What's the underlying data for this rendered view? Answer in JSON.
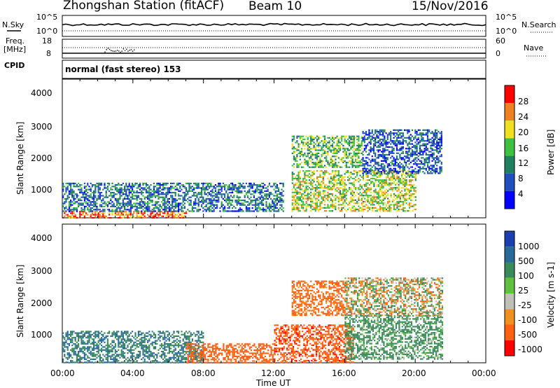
{
  "header": {
    "title": "Zhongshan Station (fitACF)",
    "beam": "Beam 10",
    "date": "15/Nov/2016"
  },
  "top_panel": {
    "left_label": "N.Sky",
    "right_label": "N.Search",
    "left_ticks": [
      "10^5",
      "10^0"
    ],
    "right_ticks": [
      "10^5",
      "10^0"
    ]
  },
  "freq_panel": {
    "left_label_line1": "Freq.",
    "left_label_line2": "[MHz]",
    "left_ticks": [
      "18",
      "8"
    ],
    "right_label": "Nave",
    "right_ticks": [
      "60",
      "0"
    ]
  },
  "cpid": {
    "label": "CPID",
    "text": "normal (fast stereo) 153"
  },
  "power_panel": {
    "ylabel": "Slant Range [km]",
    "yticks": [
      "4000",
      "3000",
      "2000",
      "1000"
    ],
    "colorbar_label": "Power [dB]",
    "colorbar_ticks": [
      "28",
      "24",
      "20",
      "16",
      "12",
      "8",
      "4"
    ]
  },
  "velocity_panel": {
    "ylabel": "Slant Range [km]",
    "yticks": [
      "4000",
      "3000",
      "2000",
      "1000"
    ],
    "colorbar_label": "Velocity [m s-1]",
    "colorbar_ticks": [
      "1000",
      "500",
      "100",
      "25",
      "-25",
      "-100",
      "-500",
      "-1000"
    ]
  },
  "xaxis": {
    "label": "Time UT",
    "ticks": [
      "00:00",
      "04:00",
      "08:00",
      "12:00",
      "16:00",
      "20:00",
      "00:00"
    ]
  },
  "colors": {
    "power_scale": [
      "#0000ff",
      "#2050c0",
      "#208060",
      "#40c040",
      "#f0e020",
      "#f08020",
      "#ff0000"
    ],
    "velocity_scale": [
      "#1a3fb0",
      "#2a6a9a",
      "#3a8a5a",
      "#60c040",
      "#c0c0b8",
      "#f09020",
      "#ff6010",
      "#ff0000"
    ]
  },
  "chart_data": [
    {
      "type": "heatmap",
      "title": "Zhongshan Station (fitACF)",
      "xlabel": "Time UT",
      "ylabel": "Slant Range [km]",
      "xlim": [
        "00:00",
        "00:00"
      ],
      "ylim": [
        180,
        4600
      ],
      "colorbar": "Power [dB]",
      "zlim": [
        0,
        30
      ],
      "regions": [
        {
          "time": [
            "00:00",
            "07:00"
          ],
          "range_km": [
            200,
            400
          ],
          "power_db": 26
        },
        {
          "time": [
            "00:00",
            "12:30"
          ],
          "range_km": [
            400,
            1300
          ],
          "power_db": 8
        },
        {
          "time": [
            "13:00",
            "20:00"
          ],
          "range_km": [
            400,
            1700
          ],
          "power_db": 18
        },
        {
          "time": [
            "13:00",
            "17:00"
          ],
          "range_km": [
            1800,
            2800
          ],
          "power_db": 14
        },
        {
          "time": [
            "17:00",
            "21:30"
          ],
          "range_km": [
            1600,
            3000
          ],
          "power_db": 6
        }
      ]
    },
    {
      "type": "heatmap",
      "xlabel": "Time UT",
      "ylabel": "Slant Range [km]",
      "xlim": [
        "00:00",
        "00:00"
      ],
      "ylim": [
        180,
        4600
      ],
      "colorbar": "Velocity [m s-1]",
      "zlim": [
        -1000,
        1000
      ],
      "regions": [
        {
          "time": [
            "00:00",
            "08:00"
          ],
          "range_km": [
            200,
            1200
          ],
          "velocity": 300
        },
        {
          "time": [
            "07:00",
            "12:00"
          ],
          "range_km": [
            200,
            800
          ],
          "velocity": -300
        },
        {
          "time": [
            "12:00",
            "16:30"
          ],
          "range_km": [
            200,
            1400
          ],
          "velocity": -400
        },
        {
          "time": [
            "13:00",
            "16:00"
          ],
          "range_km": [
            1700,
            2800
          ],
          "velocity": -200
        },
        {
          "time": [
            "16:00",
            "21:30"
          ],
          "range_km": [
            300,
            1700
          ],
          "velocity": 150
        },
        {
          "time": [
            "16:00",
            "21:30"
          ],
          "range_km": [
            1700,
            2900
          ],
          "velocity": 0
        }
      ]
    }
  ]
}
